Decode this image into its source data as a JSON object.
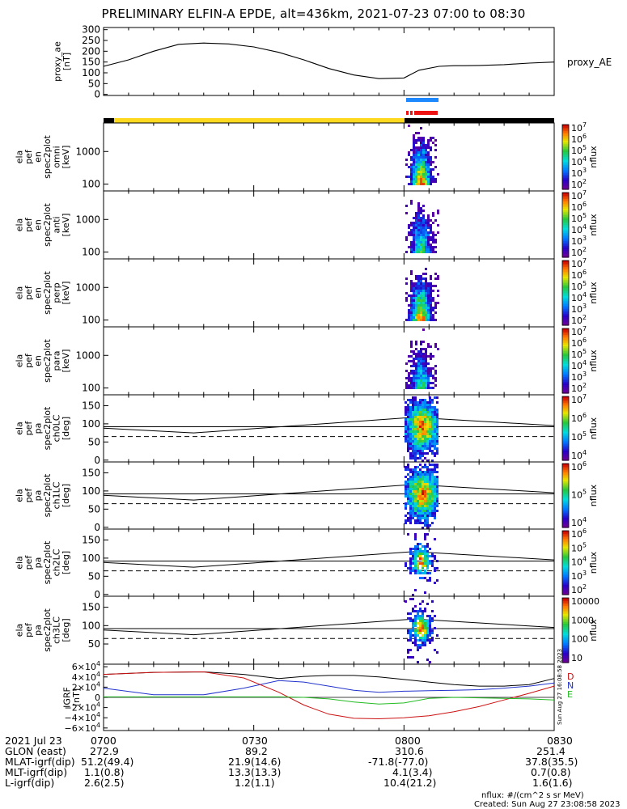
{
  "title": "PRELIMINARY ELFIN-A EPDE, alt=436km, 2021-07-23 07:00 to 08:30",
  "colors": {
    "ae_line": "#000000",
    "blue_bar": "#1e88ff",
    "red_bar": "#ee1111",
    "day_bar": "#ffd820",
    "night_bar": "#000000",
    "geo_x": "#000000",
    "geo_y": "#2233cc",
    "geo_z": "#cc1111",
    "geo_e": "#22bb22"
  },
  "chart_data": [
    {
      "type": "line",
      "name": "proxy_ae",
      "ylabel": "proxy_ae\n[nT]",
      "yticks": [
        0,
        50,
        100,
        150,
        200,
        250,
        300
      ],
      "ylim": [
        0,
        310
      ],
      "legend": "proxy_AE",
      "x_min": [
        0,
        5,
        10,
        15,
        20,
        25,
        30,
        35,
        40,
        45,
        50,
        55,
        60,
        63,
        67,
        70,
        72,
        75,
        80,
        85,
        90
      ],
      "series": [
        {
          "name": "proxy_AE",
          "values": [
            130,
            160,
            200,
            232,
            238,
            234,
            220,
            195,
            160,
            120,
            90,
            73,
            76,
            112,
            130,
            133,
            133,
            134,
            138,
            145,
            150
          ]
        }
      ]
    },
    {
      "type": "heatmap",
      "name": "omni",
      "ylabels": [
        "ela",
        "pef",
        "en",
        "spec2plot",
        "omni",
        "[keV]"
      ],
      "yticks": [
        "1000",
        "100"
      ],
      "colorbar": {
        "label": "nflux",
        "ticks": [
          "10^7",
          "10^6",
          "10^5",
          "10^4",
          "10^3",
          "10^2"
        ]
      }
    },
    {
      "type": "heatmap",
      "name": "anti",
      "ylabels": [
        "ela",
        "pef",
        "en",
        "spec2plot",
        "anti",
        "[keV]"
      ],
      "yticks": [
        "1000",
        "100"
      ],
      "colorbar": {
        "label": "nflux",
        "ticks": [
          "10^7",
          "10^6",
          "10^5",
          "10^4",
          "10^3",
          "10^2"
        ]
      }
    },
    {
      "type": "heatmap",
      "name": "perp",
      "ylabels": [
        "ela",
        "pef",
        "en",
        "spec2plot",
        "perp",
        "[keV]"
      ],
      "yticks": [
        "1000",
        "100"
      ],
      "colorbar": {
        "label": "nflux",
        "ticks": [
          "10^7",
          "10^6",
          "10^5",
          "10^4",
          "10^3",
          "10^2"
        ]
      }
    },
    {
      "type": "heatmap",
      "name": "para",
      "ylabels": [
        "ela",
        "pef",
        "en",
        "spec2plot",
        "para",
        "[keV]"
      ],
      "yticks": [
        "1000",
        "100"
      ],
      "colorbar": {
        "label": "nflux",
        "ticks": [
          "10^7",
          "10^6",
          "10^5",
          "10^4",
          "10^3",
          "10^2"
        ]
      }
    },
    {
      "type": "heatmap",
      "name": "ch0LC",
      "ylabels": [
        "ela",
        "pef",
        "pa",
        "spec2plot",
        "ch0LC",
        "[deg]"
      ],
      "yticks": [
        "150",
        "100",
        "50",
        "0"
      ],
      "colorbar": {
        "label": "nflux",
        "ticks": [
          "10^7",
          "10^6",
          "10^5",
          "10^4"
        ]
      }
    },
    {
      "type": "heatmap",
      "name": "ch1LC",
      "ylabels": [
        "ela",
        "pef",
        "pa",
        "spec2plot",
        "ch1LC",
        "[deg]"
      ],
      "yticks": [
        "150",
        "100",
        "50",
        "0"
      ],
      "colorbar": {
        "label": "nflux",
        "ticks": [
          "10^6",
          "10^5",
          "10^4"
        ]
      }
    },
    {
      "type": "heatmap",
      "name": "ch2LC",
      "ylabels": [
        "ela",
        "pef",
        "pa",
        "spec2plot",
        "ch2LC",
        "[deg]"
      ],
      "yticks": [
        "150",
        "100",
        "50",
        "0"
      ],
      "colorbar": {
        "label": "nflux",
        "ticks": [
          "10^6",
          "10^5",
          "10^4",
          "10^3",
          "10^2"
        ]
      }
    },
    {
      "type": "heatmap",
      "name": "ch3LC",
      "ylabels": [
        "ela",
        "pef",
        "pa",
        "spec2plot",
        "ch3LC",
        "[deg]"
      ],
      "yticks": [
        "150",
        "100",
        "50"
      ],
      "colorbar": {
        "label": "nflux",
        "ticks": [
          "10000",
          "1000",
          "100",
          "10"
        ]
      }
    },
    {
      "type": "line",
      "name": "IGRF",
      "ylabel": "IGRF\n[nT]",
      "yticks": [
        "6×10^4",
        "4×10^4",
        "2×10^4",
        "0",
        "−2×10^4",
        "−4×10^4",
        "−6×10^4"
      ],
      "ylim": [
        -65000,
        65000
      ],
      "legend": [
        "D",
        "N",
        "E"
      ],
      "x_min": [
        0,
        10,
        20,
        28,
        35,
        40,
        45,
        50,
        55,
        60,
        65,
        70,
        75,
        80,
        85,
        90
      ],
      "series": [
        {
          "name": "black",
          "values": [
            45000,
            49000,
            50000,
            45000,
            37000,
            41000,
            43000,
            43000,
            40000,
            35000,
            30000,
            25000,
            22000,
            22000,
            25000,
            37000
          ]
        },
        {
          "name": "blue",
          "values": [
            18000,
            5000,
            5000,
            18000,
            33000,
            30000,
            22000,
            14000,
            10000,
            12000,
            13000,
            14000,
            15000,
            18000,
            22000,
            28000
          ]
        },
        {
          "name": "red",
          "values": [
            45000,
            49000,
            50000,
            38000,
            10000,
            -15000,
            -33000,
            -41000,
            -42000,
            -40000,
            -36000,
            -28000,
            -18000,
            -5000,
            8000,
            22000
          ]
        },
        {
          "name": "green",
          "values": [
            1000,
            1000,
            1000,
            1000,
            1000,
            0,
            -3000,
            -9000,
            -13000,
            -11000,
            -2000,
            0,
            -1000,
            -2000,
            -3000,
            -5000
          ]
        }
      ]
    }
  ],
  "footer": {
    "labels": [
      "2021 Jul 23",
      "GLON (east)",
      "MLAT-igrf(dip)",
      "MLT-igrf(dip)",
      "L-igrf(dip)"
    ],
    "cols": [
      {
        "time": "0700",
        "vals": [
          "272.9",
          "51.2(49.4)",
          "1.1(0.8)",
          "2.6(2.5)"
        ]
      },
      {
        "time": "0730",
        "vals": [
          "89.2",
          "21.9(14.6)",
          "13.3(13.3)",
          "1.2(1.1)"
        ]
      },
      {
        "time": "0800",
        "vals": [
          "310.6",
          "-71.8(-77.0)",
          "4.1(3.4)",
          "10.4(21.2)"
        ]
      },
      {
        "time": "0830",
        "vals": [
          "251.4",
          "37.8(35.5)",
          "0.7(0.8)",
          "1.6(1.6)"
        ]
      }
    ],
    "units": "nflux: #/(cm^2 s sr MeV)",
    "created": "Created: Sun Aug 27 23:08:58 2023",
    "side_stamp": "Sun Aug 27 16:08:58 2023"
  }
}
